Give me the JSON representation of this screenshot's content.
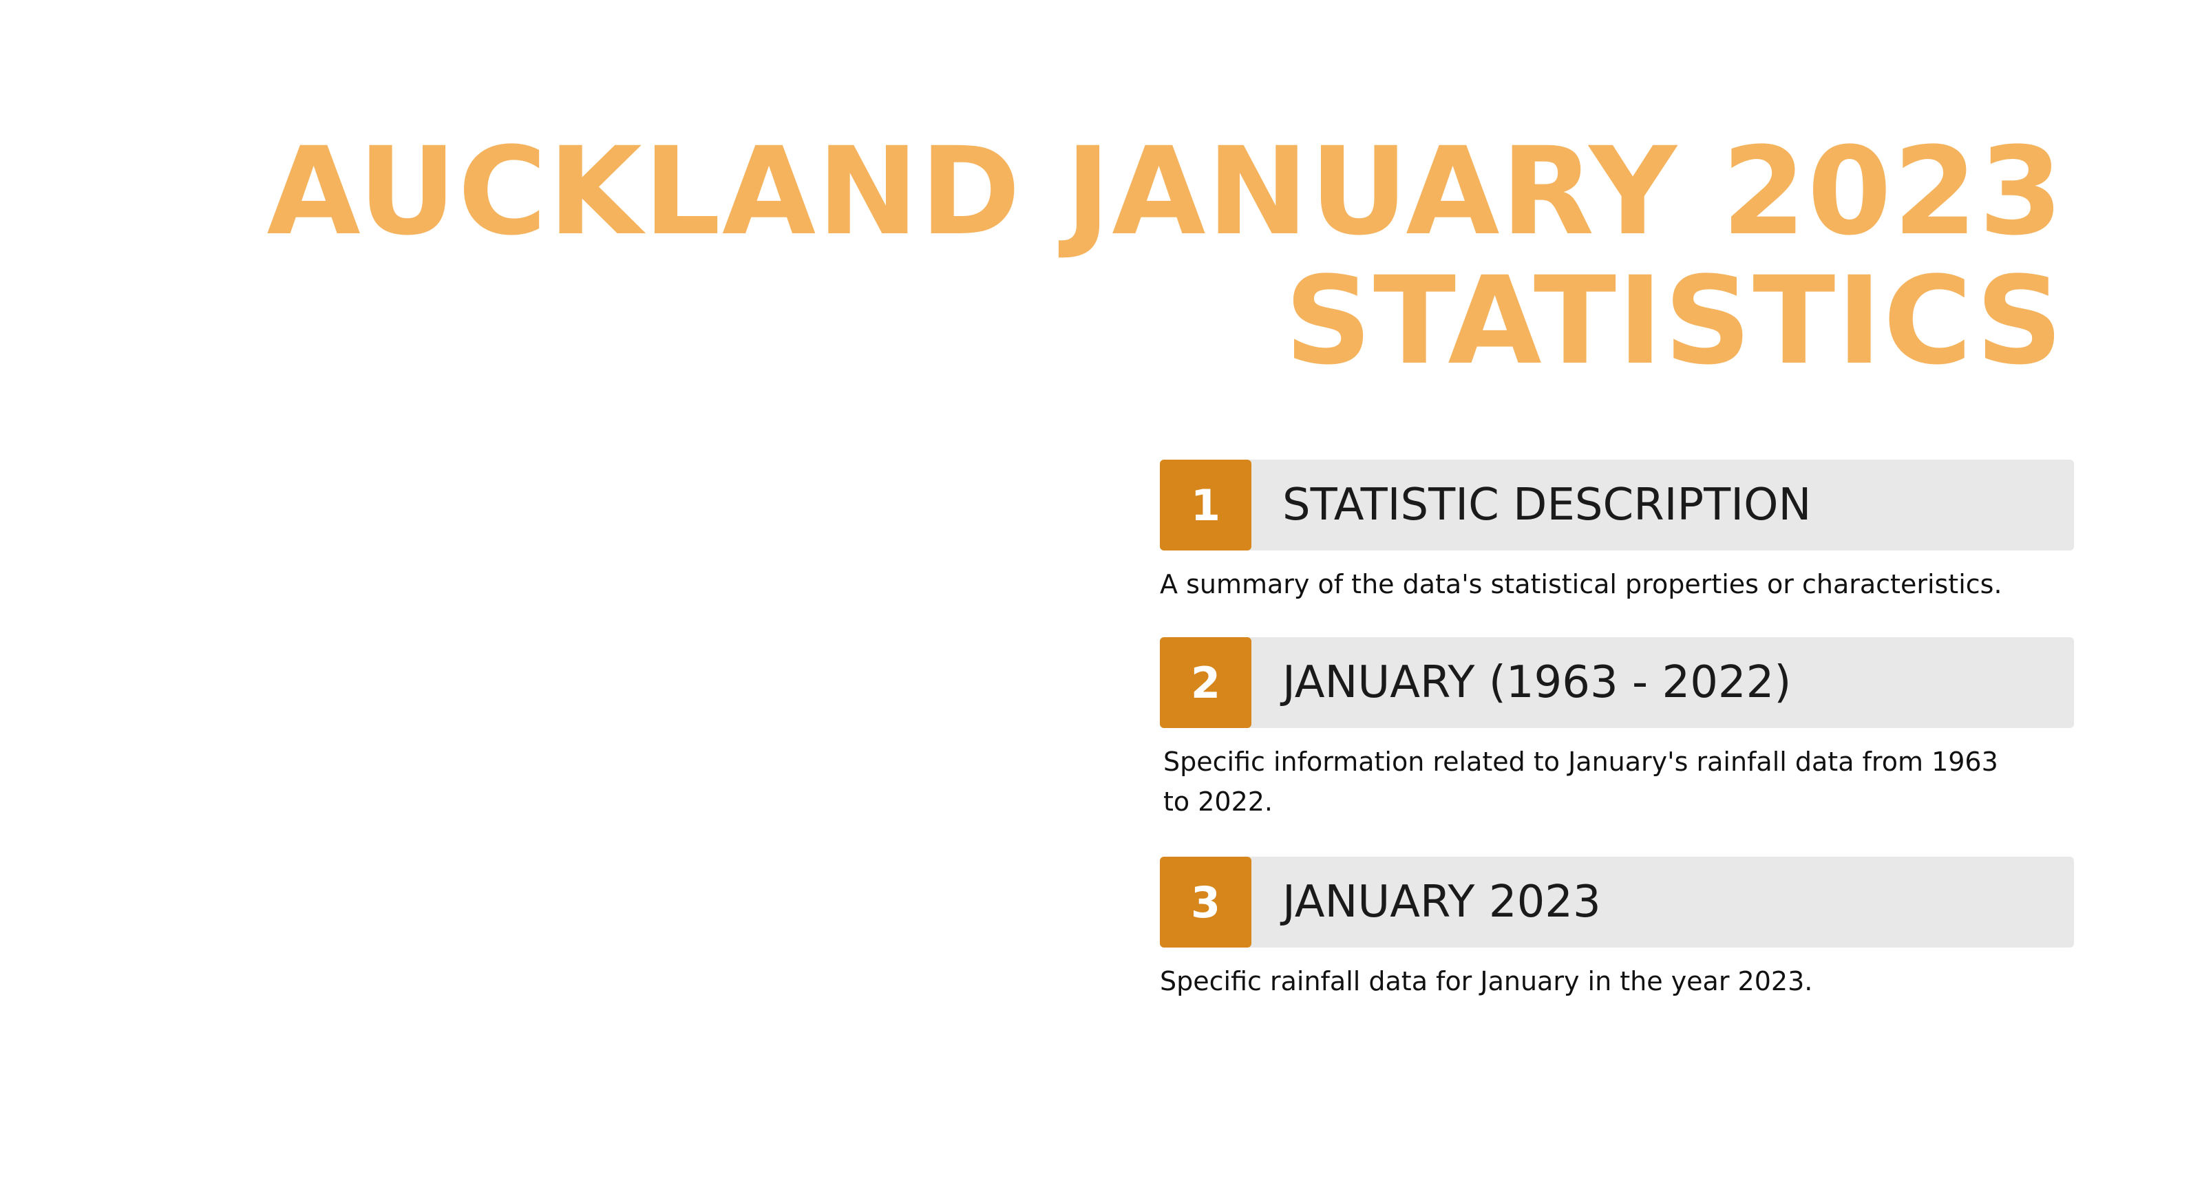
{
  "title": {
    "line1": "AUCKLAND JANUARY 2023",
    "line2": "STATISTICS"
  },
  "colors": {
    "title": "#f5b35e",
    "badge": "#d6861a",
    "bar": "#e8e8e8"
  },
  "items": [
    {
      "number": "1",
      "heading": "STATISTIC DESCRIPTION",
      "description": "A summary of the data's statistical properties or characteristics."
    },
    {
      "number": "2",
      "heading": "JANUARY (1963 - 2022)",
      "description": "Specific information related to January's rainfall data from 1963 to 2022."
    },
    {
      "number": "3",
      "heading": "JANUARY 2023",
      "description": "Specific rainfall data for January in the year 2023."
    }
  ]
}
